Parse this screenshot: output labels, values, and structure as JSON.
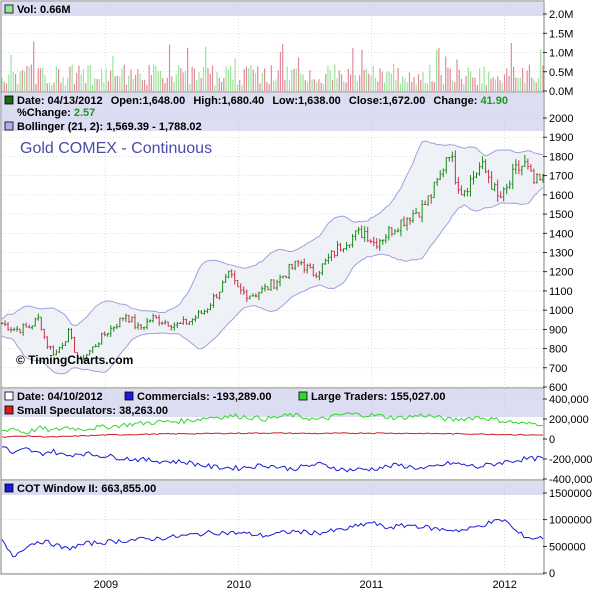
{
  "chart_data": [
    {
      "type": "bar",
      "panel": "volume",
      "legend": "Vol: 0.66M",
      "y_ticks": [
        "2.0M",
        "1.5M",
        "1.0M",
        "0.5M",
        "0.0M"
      ],
      "ylim": [
        0,
        2.0
      ],
      "unit": "M",
      "latest": 0.66,
      "colors": {
        "up": "#9be39b",
        "down": "#e08a9a"
      }
    },
    {
      "type": "candlestick",
      "panel": "price",
      "title": "Gold COMEX - Continuous",
      "watermark": "© TimingCharts.com",
      "legend_line1": {
        "date_label": "Date: 04/13/2012",
        "open_label": "Open:1,648.00",
        "high_label": "High:1,680.40",
        "low_label": "Low:1,638.00",
        "close_label": "Close:1,672.00",
        "change_label": "Change:",
        "change_value": "41.90"
      },
      "legend_line2": {
        "pct_label": "%Change:",
        "pct_value": "2.57"
      },
      "bollinger_label": "Bollinger (21, 2): 1,569.39 - 1,788.02",
      "ylim": [
        600,
        2000
      ],
      "y_ticks": [
        "2000",
        "1900",
        "1800",
        "1700",
        "1600",
        "1500",
        "1400",
        "1300",
        "1200",
        "1100",
        "1000",
        "900",
        "800",
        "700",
        "600"
      ],
      "x_ticks": [
        "2009",
        "2010",
        "2011",
        "2012"
      ],
      "x_tick_dates": [
        2009.0,
        2010.0,
        2011.0,
        2012.0
      ],
      "x_range": [
        2008.22,
        2012.29
      ],
      "close_series": [
        {
          "x": 2008.22,
          "y": 930
        },
        {
          "x": 2008.32,
          "y": 900
        },
        {
          "x": 2008.42,
          "y": 910
        },
        {
          "x": 2008.5,
          "y": 960
        },
        {
          "x": 2008.55,
          "y": 830
        },
        {
          "x": 2008.62,
          "y": 770
        },
        {
          "x": 2008.72,
          "y": 880
        },
        {
          "x": 2008.8,
          "y": 730
        },
        {
          "x": 2008.9,
          "y": 800
        },
        {
          "x": 2009.0,
          "y": 880
        },
        {
          "x": 2009.1,
          "y": 940
        },
        {
          "x": 2009.15,
          "y": 980
        },
        {
          "x": 2009.25,
          "y": 900
        },
        {
          "x": 2009.35,
          "y": 960
        },
        {
          "x": 2009.45,
          "y": 940
        },
        {
          "x": 2009.55,
          "y": 920
        },
        {
          "x": 2009.65,
          "y": 950
        },
        {
          "x": 2009.75,
          "y": 1000
        },
        {
          "x": 2009.85,
          "y": 1100
        },
        {
          "x": 2009.93,
          "y": 1180
        },
        {
          "x": 2010.0,
          "y": 1100
        },
        {
          "x": 2010.1,
          "y": 1080
        },
        {
          "x": 2010.2,
          "y": 1110
        },
        {
          "x": 2010.3,
          "y": 1160
        },
        {
          "x": 2010.4,
          "y": 1220
        },
        {
          "x": 2010.47,
          "y": 1250
        },
        {
          "x": 2010.55,
          "y": 1190
        },
        {
          "x": 2010.62,
          "y": 1220
        },
        {
          "x": 2010.72,
          "y": 1300
        },
        {
          "x": 2010.8,
          "y": 1360
        },
        {
          "x": 2010.88,
          "y": 1390
        },
        {
          "x": 2010.95,
          "y": 1410
        },
        {
          "x": 2011.02,
          "y": 1350
        },
        {
          "x": 2011.1,
          "y": 1390
        },
        {
          "x": 2011.2,
          "y": 1450
        },
        {
          "x": 2011.3,
          "y": 1500
        },
        {
          "x": 2011.38,
          "y": 1530
        },
        {
          "x": 2011.45,
          "y": 1600
        },
        {
          "x": 2011.52,
          "y": 1700
        },
        {
          "x": 2011.58,
          "y": 1850
        },
        {
          "x": 2011.63,
          "y": 1700
        },
        {
          "x": 2011.68,
          "y": 1620
        },
        {
          "x": 2011.75,
          "y": 1680
        },
        {
          "x": 2011.82,
          "y": 1750
        },
        {
          "x": 2011.88,
          "y": 1700
        },
        {
          "x": 2011.95,
          "y": 1580
        },
        {
          "x": 2012.0,
          "y": 1600
        },
        {
          "x": 2012.08,
          "y": 1720
        },
        {
          "x": 2012.15,
          "y": 1760
        },
        {
          "x": 2012.22,
          "y": 1660
        },
        {
          "x": 2012.29,
          "y": 1672
        }
      ],
      "colors": {
        "up": "#1a8a1a",
        "down": "#c8304a",
        "band": "#a0a0e0",
        "band_fill": "#eef2f6"
      }
    },
    {
      "type": "line",
      "panel": "cot",
      "legend": {
        "date_label": "Date: 04/10/2012",
        "commercials_label": "Commercials: -193,289.00",
        "large_traders_label": "Large Traders: 155,027.00",
        "small_spec_label": "Small Speculators: 38,263.00"
      },
      "ylim": [
        -400000,
        400000
      ],
      "y_ticks": [
        "400,000",
        "200,000",
        "0",
        "-200,000",
        "-400,000"
      ],
      "series": [
        {
          "name": "Commercials",
          "color": "#1c1cd8",
          "latest": -193289,
          "values": [
            [
              2008.22,
              -60000
            ],
            [
              2008.3,
              -150000
            ],
            [
              2008.4,
              -100000
            ],
            [
              2008.5,
              -150000
            ],
            [
              2008.6,
              -120000
            ],
            [
              2008.7,
              -170000
            ],
            [
              2008.8,
              -140000
            ],
            [
              2009.0,
              -170000
            ],
            [
              2009.2,
              -200000
            ],
            [
              2009.4,
              -220000
            ],
            [
              2009.6,
              -230000
            ],
            [
              2009.8,
              -280000
            ],
            [
              2010.0,
              -290000
            ],
            [
              2010.2,
              -260000
            ],
            [
              2010.4,
              -300000
            ],
            [
              2010.6,
              -250000
            ],
            [
              2010.8,
              -310000
            ],
            [
              2011.0,
              -300000
            ],
            [
              2011.2,
              -260000
            ],
            [
              2011.4,
              -300000
            ],
            [
              2011.6,
              -240000
            ],
            [
              2011.8,
              -280000
            ],
            [
              2012.0,
              -230000
            ],
            [
              2012.15,
              -200000
            ],
            [
              2012.29,
              -193289
            ]
          ]
        },
        {
          "name": "Large Traders",
          "color": "#30d830",
          "latest": 155027,
          "values": [
            [
              2008.22,
              80000
            ],
            [
              2008.3,
              110000
            ],
            [
              2008.4,
              60000
            ],
            [
              2008.5,
              110000
            ],
            [
              2008.6,
              80000
            ],
            [
              2008.7,
              120000
            ],
            [
              2008.8,
              100000
            ],
            [
              2009.0,
              120000
            ],
            [
              2009.2,
              150000
            ],
            [
              2009.4,
              170000
            ],
            [
              2009.6,
              180000
            ],
            [
              2009.8,
              220000
            ],
            [
              2010.0,
              230000
            ],
            [
              2010.2,
              200000
            ],
            [
              2010.4,
              240000
            ],
            [
              2010.6,
              190000
            ],
            [
              2010.8,
              250000
            ],
            [
              2011.0,
              240000
            ],
            [
              2011.2,
              210000
            ],
            [
              2011.4,
              240000
            ],
            [
              2011.6,
              190000
            ],
            [
              2011.8,
              220000
            ],
            [
              2012.0,
              180000
            ],
            [
              2012.15,
              150000
            ],
            [
              2012.29,
              155027
            ]
          ]
        },
        {
          "name": "Small Speculators",
          "color": "#d02020",
          "latest": 38263,
          "values": [
            [
              2008.22,
              20000
            ],
            [
              2008.4,
              30000
            ],
            [
              2008.6,
              20000
            ],
            [
              2008.8,
              30000
            ],
            [
              2009.0,
              40000
            ],
            [
              2009.4,
              50000
            ],
            [
              2009.8,
              55000
            ],
            [
              2010.2,
              60000
            ],
            [
              2010.6,
              55000
            ],
            [
              2011.0,
              60000
            ],
            [
              2011.4,
              55000
            ],
            [
              2011.8,
              50000
            ],
            [
              2012.0,
              45000
            ],
            [
              2012.29,
              38263
            ]
          ]
        }
      ]
    },
    {
      "type": "line",
      "panel": "cot_window",
      "legend": "COT Window II: 663,855.00",
      "ylim": [
        0,
        1500000
      ],
      "y_ticks": [
        "1500000",
        "1000000",
        "500000",
        "0"
      ],
      "series": [
        {
          "name": "COT Window II",
          "color": "#1c1cd8",
          "latest": 663855,
          "values": [
            [
              2008.22,
              600000
            ],
            [
              2008.3,
              300000
            ],
            [
              2008.4,
              500000
            ],
            [
              2008.5,
              600000
            ],
            [
              2008.6,
              550000
            ],
            [
              2008.7,
              450000
            ],
            [
              2008.85,
              550000
            ],
            [
              2009.0,
              580000
            ],
            [
              2009.2,
              620000
            ],
            [
              2009.4,
              650000
            ],
            [
              2009.6,
              700000
            ],
            [
              2009.8,
              760000
            ],
            [
              2010.0,
              750000
            ],
            [
              2010.2,
              700000
            ],
            [
              2010.4,
              780000
            ],
            [
              2010.6,
              750000
            ],
            [
              2010.8,
              820000
            ],
            [
              2011.0,
              950000
            ],
            [
              2011.1,
              850000
            ],
            [
              2011.3,
              900000
            ],
            [
              2011.5,
              820000
            ],
            [
              2011.7,
              800000
            ],
            [
              2011.9,
              950000
            ],
            [
              2012.0,
              1000000
            ],
            [
              2012.1,
              750000
            ],
            [
              2012.2,
              650000
            ],
            [
              2012.29,
              663855
            ]
          ]
        }
      ]
    }
  ]
}
